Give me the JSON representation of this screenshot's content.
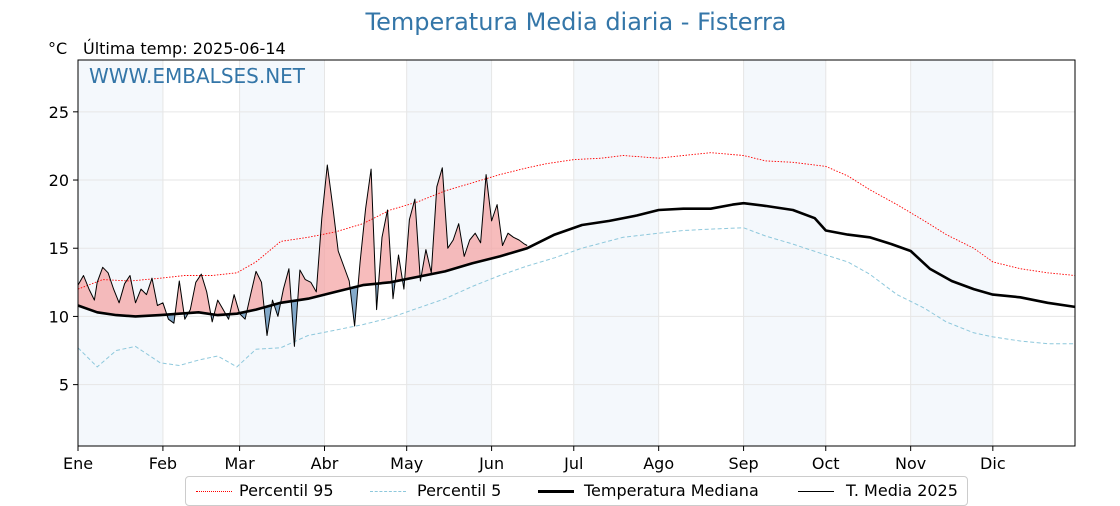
{
  "chart_data": {
    "type": "line",
    "title": "Temperatura Media diaria - Fisterra",
    "unit_label": "°C",
    "last_temp_label": "Última temp: 2025-06-14",
    "watermark": "WWW.EMBALSES.NET",
    "x_axis": {
      "min_day": 1,
      "max_day": 365
    },
    "ylim": [
      0.5,
      28.8
    ],
    "yticks": [
      5,
      10,
      15,
      20,
      25
    ],
    "grid": true,
    "months": [
      "Ene",
      "Feb",
      "Mar",
      "Abr",
      "May",
      "Jun",
      "Jul",
      "Ago",
      "Sep",
      "Oct",
      "Nov",
      "Dic"
    ],
    "month_start_days": [
      1,
      32,
      60,
      91,
      121,
      152,
      182,
      213,
      244,
      274,
      305,
      335
    ],
    "shaded_months": [
      "Ene",
      "Mar",
      "May",
      "Jul",
      "Sep",
      "Nov"
    ],
    "legend_position": "bottom-center",
    "series": [
      {
        "name": "Percentil 95",
        "style": "dotted",
        "color": "#ff0000",
        "x": [
          1,
          10,
          20,
          31,
          40,
          50,
          59,
          66,
          75,
          85,
          95,
          105,
          115,
          125,
          135,
          145,
          155,
          165,
          172,
          182,
          192,
          200,
          213,
          222,
          232,
          244,
          252,
          262,
          274,
          282,
          290,
          300,
          310,
          318,
          328,
          335,
          345,
          355,
          365
        ],
        "y": [
          12.0,
          12.7,
          12.6,
          12.8,
          13.0,
          13.0,
          13.2,
          14.0,
          15.5,
          15.8,
          16.2,
          16.8,
          17.8,
          18.4,
          19.2,
          19.8,
          20.4,
          20.9,
          21.2,
          21.5,
          21.6,
          21.8,
          21.6,
          21.8,
          22.0,
          21.8,
          21.4,
          21.3,
          21.0,
          20.3,
          19.3,
          18.2,
          17.0,
          16.0,
          15.0,
          14.0,
          13.5,
          13.2,
          13.0
        ]
      },
      {
        "name": "Percentil 5",
        "style": "dashed",
        "color": "#8ec8dc",
        "x": [
          1,
          8,
          15,
          22,
          31,
          38,
          45,
          52,
          59,
          66,
          75,
          85,
          95,
          105,
          115,
          125,
          135,
          145,
          155,
          165,
          175,
          185,
          200,
          213,
          222,
          232,
          244,
          252,
          262,
          274,
          282,
          290,
          300,
          310,
          318,
          328,
          335,
          345,
          355,
          365
        ],
        "y": [
          7.7,
          6.3,
          7.5,
          7.8,
          6.6,
          6.4,
          6.8,
          7.1,
          6.3,
          7.6,
          7.7,
          8.6,
          9.0,
          9.4,
          9.9,
          10.6,
          11.3,
          12.2,
          13.0,
          13.7,
          14.3,
          15.0,
          15.8,
          16.1,
          16.3,
          16.4,
          16.5,
          15.9,
          15.3,
          14.5,
          14.0,
          13.1,
          11.6,
          10.6,
          9.6,
          8.8,
          8.5,
          8.2,
          8.0,
          8.0
        ]
      },
      {
        "name": "Temperatura Mediana",
        "style": "solid-thick",
        "color": "#000000",
        "x": [
          1,
          8,
          15,
          22,
          31,
          38,
          45,
          52,
          59,
          66,
          75,
          85,
          95,
          105,
          115,
          125,
          135,
          145,
          155,
          165,
          175,
          185,
          195,
          205,
          213,
          222,
          232,
          240,
          244,
          252,
          262,
          270,
          274,
          282,
          290,
          298,
          305,
          312,
          320,
          328,
          335,
          345,
          355,
          365
        ],
        "y": [
          10.8,
          10.3,
          10.1,
          10.0,
          10.1,
          10.2,
          10.3,
          10.1,
          10.2,
          10.5,
          11.0,
          11.3,
          11.8,
          12.3,
          12.5,
          12.9,
          13.3,
          13.9,
          14.4,
          15.0,
          16.0,
          16.7,
          17.0,
          17.4,
          17.8,
          17.9,
          17.9,
          18.2,
          18.3,
          18.1,
          17.8,
          17.2,
          16.3,
          16.0,
          15.8,
          15.3,
          14.8,
          13.5,
          12.6,
          12.0,
          11.6,
          11.4,
          11.0,
          10.7
        ]
      },
      {
        "name": "T. Media 2025",
        "style": "solid-thin",
        "color": "#000000",
        "x": [
          1,
          3,
          5,
          7,
          8,
          10,
          12,
          14,
          16,
          18,
          20,
          22,
          24,
          26,
          28,
          30,
          32,
          34,
          36,
          38,
          40,
          42,
          44,
          46,
          48,
          50,
          52,
          54,
          56,
          58,
          60,
          62,
          64,
          66,
          68,
          70,
          72,
          74,
          76,
          78,
          80,
          82,
          84,
          86,
          88,
          90,
          92,
          94,
          96,
          98,
          100,
          102,
          104,
          106,
          108,
          110,
          112,
          114,
          116,
          118,
          120,
          122,
          124,
          126,
          128,
          130,
          132,
          134,
          136,
          138,
          140,
          142,
          144,
          146,
          148,
          150,
          152,
          154,
          156,
          158,
          160,
          162,
          164,
          165
        ],
        "y": [
          12.3,
          13.0,
          12.0,
          11.2,
          12.5,
          13.6,
          13.2,
          12.0,
          11.0,
          12.4,
          13.0,
          11.0,
          12.0,
          11.6,
          12.8,
          10.8,
          11.0,
          9.8,
          9.5,
          12.6,
          9.8,
          10.5,
          12.5,
          13.1,
          11.8,
          9.6,
          11.2,
          10.5,
          9.8,
          11.6,
          10.2,
          9.8,
          11.6,
          13.3,
          12.5,
          8.6,
          11.2,
          10.0,
          12.0,
          13.5,
          7.8,
          13.4,
          12.7,
          12.5,
          11.8,
          17.2,
          21.1,
          18.1,
          14.8,
          13.7,
          12.6,
          9.3,
          14.0,
          17.9,
          20.8,
          10.5,
          15.8,
          17.8,
          11.3,
          14.5,
          12.0,
          17.1,
          18.6,
          12.6,
          14.9,
          13.2,
          19.5,
          20.9,
          15.0,
          15.6,
          16.8,
          14.4,
          15.6,
          16.1,
          15.4,
          20.4,
          17.0,
          18.2,
          15.2,
          16.1,
          15.8,
          15.6,
          15.3,
          15.2
        ]
      }
    ]
  }
}
